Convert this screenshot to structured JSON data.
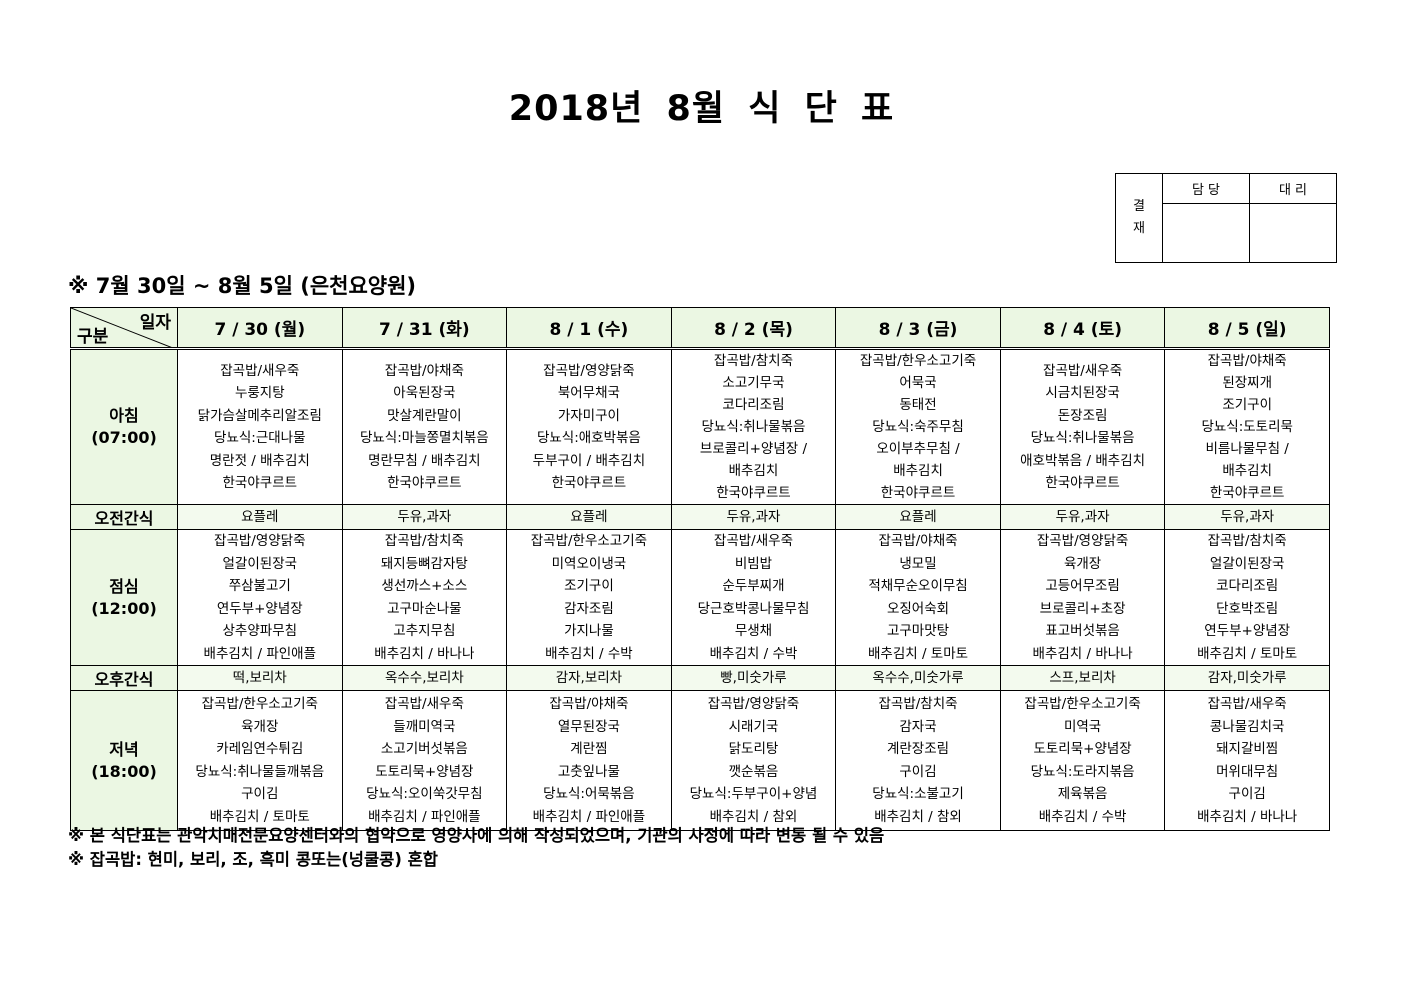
{
  "title": "2018년 8월 식 단 표",
  "approval": {
    "label": "결\n재",
    "label_top": "결",
    "label_bottom": "재",
    "col1": "담 당",
    "col2": "대 리"
  },
  "subtitle": "※ 7월 30일 ~ 8월 5일 (은천요양원)",
  "corner": {
    "top_right": "일자",
    "bottom_left": "구분"
  },
  "row_labels": {
    "breakfast": "아침",
    "breakfast_time": "(07:00)",
    "am_snack": "오전간식",
    "lunch": "점심",
    "lunch_time": "(12:00)",
    "pm_snack": "오후간식",
    "dinner": "저녁",
    "dinner_time": "(18:00)"
  },
  "days": [
    {
      "date": "7 / 30 (월)",
      "breakfast": [
        "잡곡밥/새우죽",
        "누룽지탕",
        "닭가슴살메추리알조림",
        "당뇨식:근대나물",
        "명란젓 / 배추김치",
        "한국야쿠르트"
      ],
      "am_snack": "요플레",
      "lunch": [
        "잡곡밥/영양닭죽",
        "얼갈이된장국",
        "쭈삼불고기",
        "연두부+양념장",
        "상추양파무침",
        "배추김치 / 파인애플"
      ],
      "pm_snack": "떡,보리차",
      "dinner": [
        "잡곡밥/한우소고기죽",
        "육개장",
        "카레임연수튀김",
        "당뇨식:취나물들깨볶음",
        "구이김",
        "배추김치 / 토마토"
      ]
    },
    {
      "date": "7 / 31 (화)",
      "breakfast": [
        "잡곡밥/야채죽",
        "아욱된장국",
        "맛살계란말이",
        "당뇨식:마늘쫑멸치볶음",
        "명란무침 / 배추김치",
        "한국야쿠르트"
      ],
      "am_snack": "두유,과자",
      "lunch": [
        "잡곡밥/참치죽",
        "돼지등뼈감자탕",
        "생선까스+소스",
        "고구마순나물",
        "고추지무침",
        "배추김치 / 바나나"
      ],
      "pm_snack": "옥수수,보리차",
      "dinner": [
        "잡곡밥/새우죽",
        "들깨미역국",
        "소고기버섯볶음",
        "도토리묵+양념장",
        "당뇨식:오이쑥갓무침",
        "배추김치 / 파인애플"
      ]
    },
    {
      "date": "8 / 1 (수)",
      "breakfast": [
        "잡곡밥/영양닭죽",
        "북어무채국",
        "가자미구이",
        "당뇨식:애호박볶음",
        "두부구이 / 배추김치",
        "한국야쿠르트"
      ],
      "am_snack": "요플레",
      "lunch": [
        "잡곡밥/한우소고기죽",
        "미역오이냉국",
        "조기구이",
        "감자조림",
        "가지나물",
        "배추김치 / 수박"
      ],
      "pm_snack": "감자,보리차",
      "dinner": [
        "잡곡밥/야채죽",
        "열무된장국",
        "계란찜",
        "고춧잎나물",
        "당뇨식:어묵볶음",
        "배추김치 / 파인애플"
      ]
    },
    {
      "date": "8 / 2 (목)",
      "breakfast": [
        "잡곡밥/참치죽",
        "소고기무국",
        "코다리조림",
        "당뇨식:취나물볶음",
        "브로콜리+양념장 /",
        "배추김치",
        "한국야쿠르트"
      ],
      "am_snack": "두유,과자",
      "lunch": [
        "잡곡밥/새우죽",
        "비빔밥",
        "순두부찌개",
        "당근호박콩나물무침",
        "무생채",
        "배추김치 / 수박"
      ],
      "pm_snack": "빵,미숫가루",
      "dinner": [
        "잡곡밥/영양닭죽",
        "시래기국",
        "닭도리탕",
        "깻순볶음",
        "당뇨식:두부구이+양념",
        "배추김치 / 참외"
      ]
    },
    {
      "date": "8 / 3 (금)",
      "breakfast": [
        "잡곡밥/한우소고기죽",
        "어묵국",
        "동태전",
        "당뇨식:숙주무침",
        "오이부추무침 /",
        "배추김치",
        "한국야쿠르트"
      ],
      "am_snack": "요플레",
      "lunch": [
        "잡곡밥/야채죽",
        "냉모밀",
        "적채무순오이무침",
        "오징어숙회",
        "고구마맛탕",
        "배추김치 / 토마토"
      ],
      "pm_snack": "옥수수,미숫가루",
      "dinner": [
        "잡곡밥/참치죽",
        "감자국",
        "계란장조림",
        "구이김",
        "당뇨식:소불고기",
        "배추김치 / 참외"
      ]
    },
    {
      "date": "8 / 4 (토)",
      "breakfast": [
        "잡곡밥/새우죽",
        "시금치된장국",
        "돈장조림",
        "당뇨식:취나물볶음",
        "애호박볶음 / 배추김치",
        "한국야쿠르트"
      ],
      "am_snack": "두유,과자",
      "lunch": [
        "잡곡밥/영양닭죽",
        "육개장",
        "고등어무조림",
        "브로콜리+초장",
        "표고버섯볶음",
        "배추김치 / 바나나"
      ],
      "pm_snack": "스프,보리차",
      "dinner": [
        "잡곡밥/한우소고기죽",
        "미역국",
        "도토리묵+양념장",
        "당뇨식:도라지볶음",
        "제육볶음",
        "배추김치 / 수박"
      ]
    },
    {
      "date": "8 / 5 (일)",
      "breakfast": [
        "잡곡밥/야채죽",
        "된장찌개",
        "조기구이",
        "당뇨식:도토리묵",
        "비름나물무침 /",
        "배추김치",
        "한국야쿠르트"
      ],
      "am_snack": "두유,과자",
      "lunch": [
        "잡곡밥/참치죽",
        "얼갈이된장국",
        "코다리조림",
        "단호박조림",
        "연두부+양념장",
        "배추김치 / 토마토"
      ],
      "pm_snack": "감자,미숫가루",
      "dinner": [
        "잡곡밥/새우죽",
        "콩나물김치국",
        "돼지갈비찜",
        "머위대무침",
        "구이김",
        "배추김치 / 바나나"
      ]
    }
  ],
  "footnotes": [
    "※ 본 식단표는 관악치매전문요양센터와의 협약으로 영양사에 의해 작성되었으며, 기관의 사정에 따라 변동 될 수 있음",
    "※ 잡곡밥: 현미, 보리, 조, 흑미 콩또는(넝쿨콩) 혼합"
  ]
}
